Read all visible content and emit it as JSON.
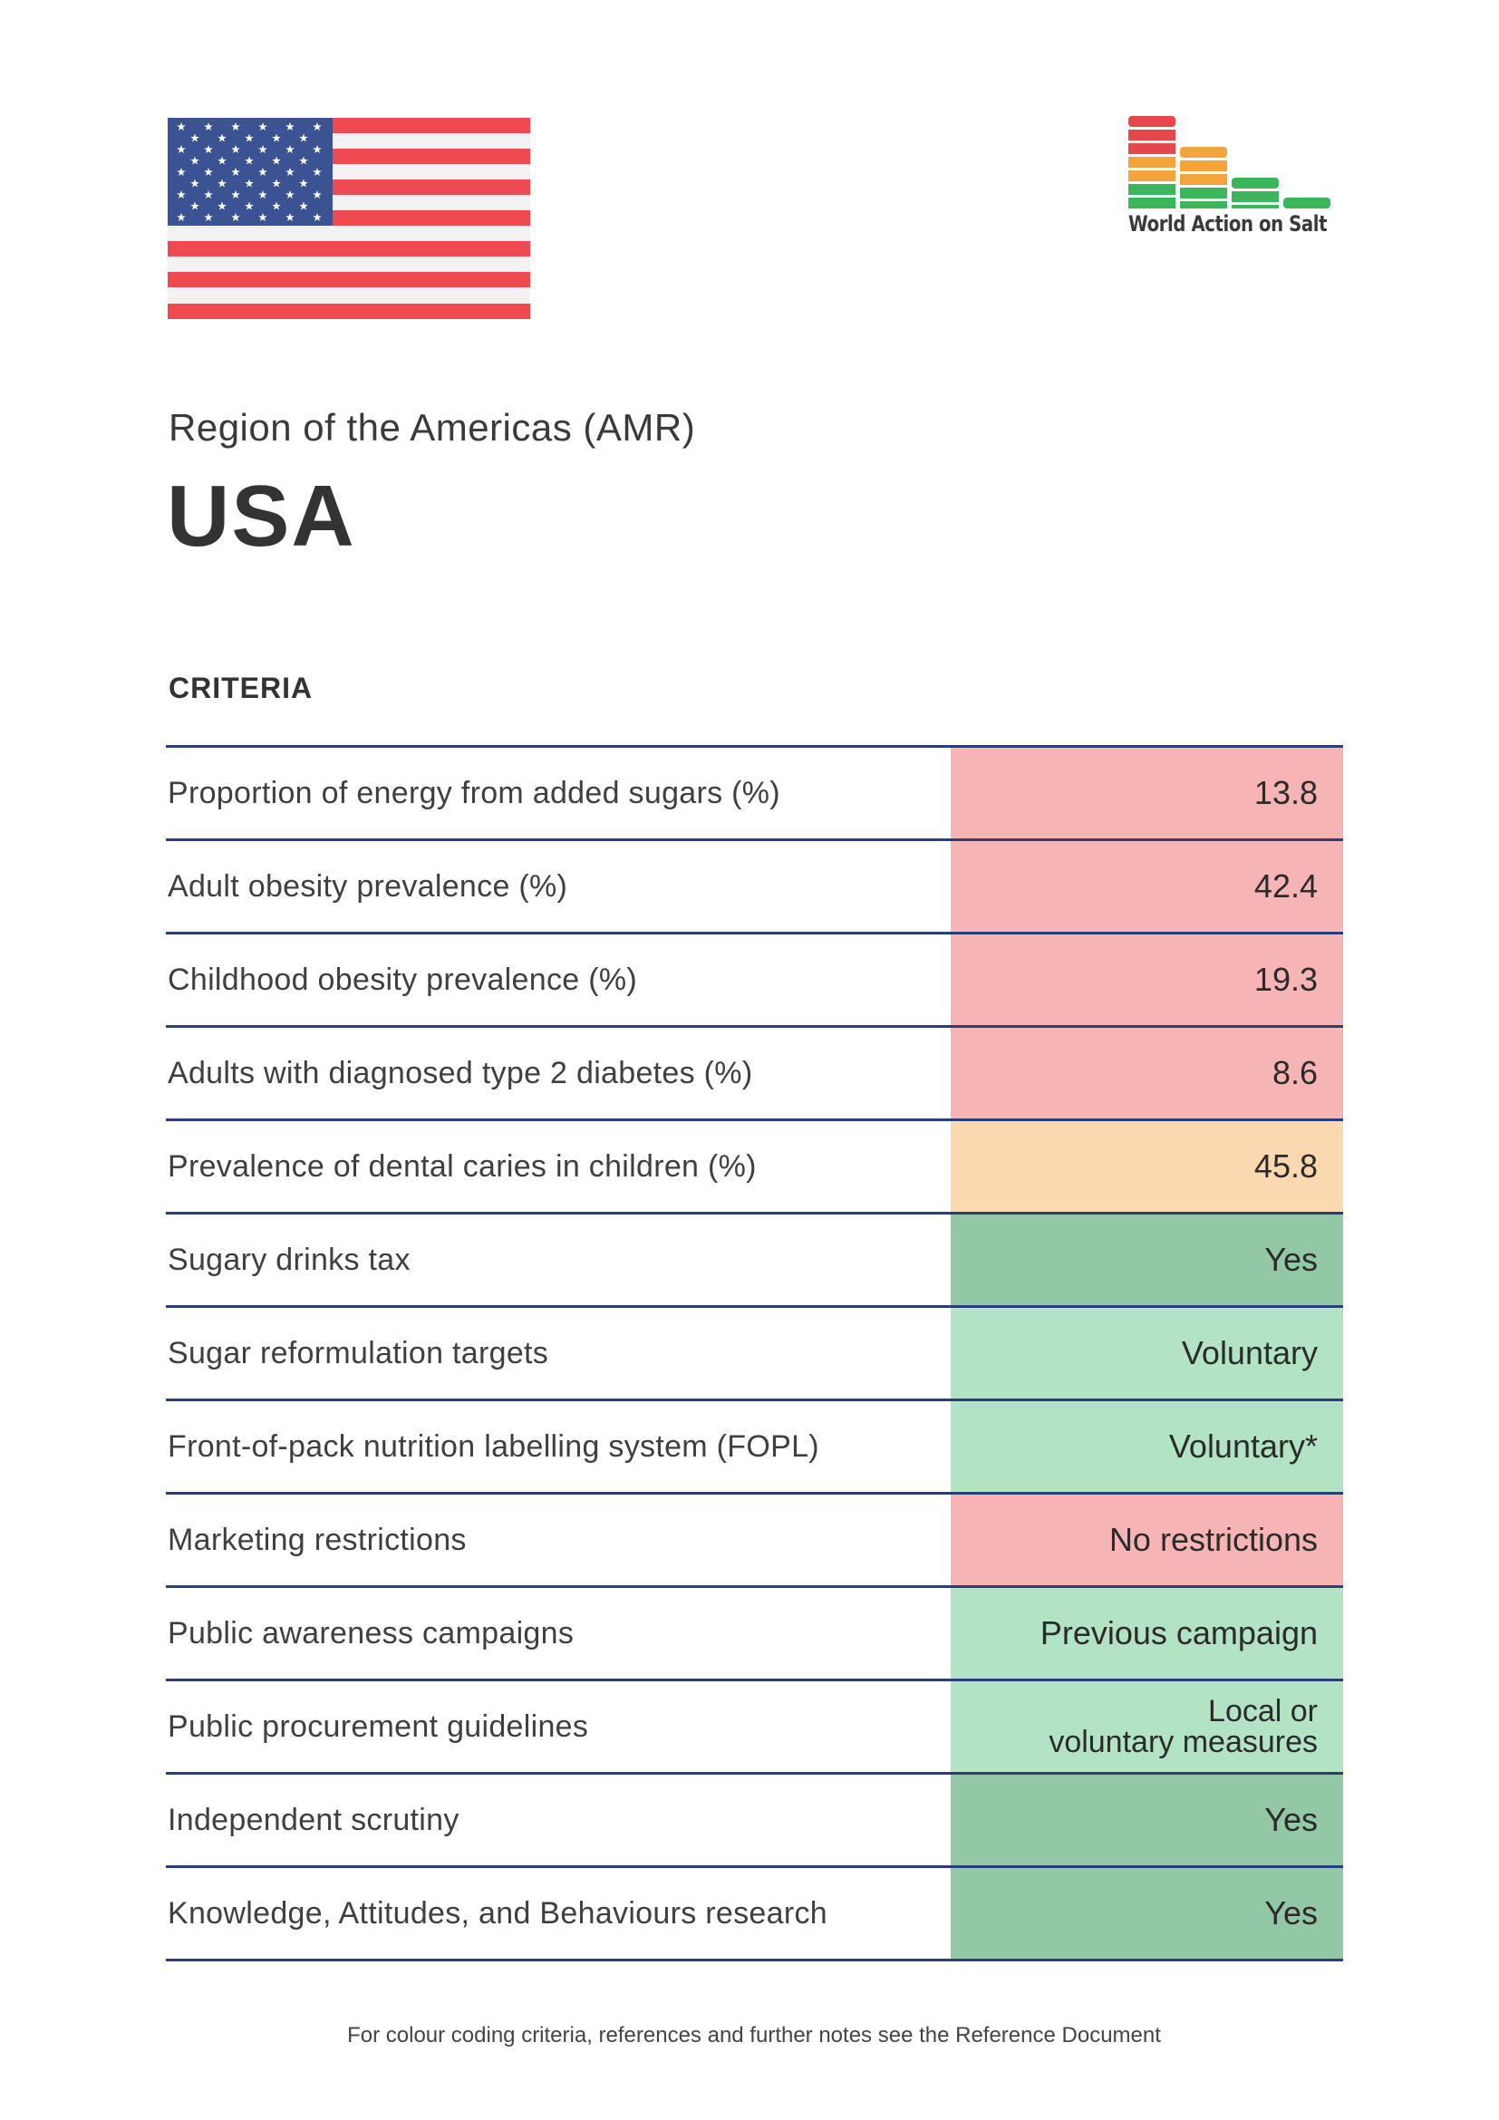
{
  "header": {
    "flag": "usa-flag",
    "logo_text": "World Action on Salt",
    "logo_colors": {
      "red": "#e8464d",
      "orange": "#f4a43c",
      "green": "#3cb65a"
    }
  },
  "region": "Region of the Americas (AMR)",
  "country": "USA",
  "criteria_heading": "CRITERIA",
  "colors": {
    "red": "#f7b4b5",
    "amber": "#fbd9b0",
    "green_dark": "#92c8a5",
    "green_light": "#b3e3c5",
    "rule": "#2c3e7a"
  },
  "rows": [
    {
      "label": "Proportion of energy from added sugars (%)",
      "value": "13.8",
      "status": "red"
    },
    {
      "label": "Adult obesity prevalence (%)",
      "value": "42.4",
      "status": "red"
    },
    {
      "label": "Childhood obesity prevalence (%)",
      "value": "19.3",
      "status": "red"
    },
    {
      "label": "Adults with diagnosed type 2 diabetes (%)",
      "value": "8.6",
      "status": "red"
    },
    {
      "label": "Prevalence of dental caries in children (%)",
      "value": "45.8",
      "status": "amber"
    },
    {
      "label": "Sugary drinks tax",
      "value": "Yes",
      "status": "green-dark"
    },
    {
      "label": "Sugar reformulation targets",
      "value": "Voluntary",
      "status": "green-light"
    },
    {
      "label": "Front-of-pack nutrition labelling system (FOPL)",
      "value": "Voluntary*",
      "status": "green-light"
    },
    {
      "label": "Marketing restrictions",
      "value": "No restrictions",
      "status": "red"
    },
    {
      "label": "Public awareness campaigns",
      "value": "Previous campaign",
      "status": "green-light"
    },
    {
      "label": "Public procurement guidelines",
      "value_line1": "Local or",
      "value_line2": "voluntary measures",
      "status": "green-light"
    },
    {
      "label": "Independent scrutiny",
      "value": "Yes",
      "status": "green-dark"
    },
    {
      "label": "Knowledge, Attitudes, and Behaviours research",
      "value": "Yes",
      "status": "green-dark"
    }
  ],
  "footer": "For colour coding criteria, references and further notes see the Reference Document"
}
